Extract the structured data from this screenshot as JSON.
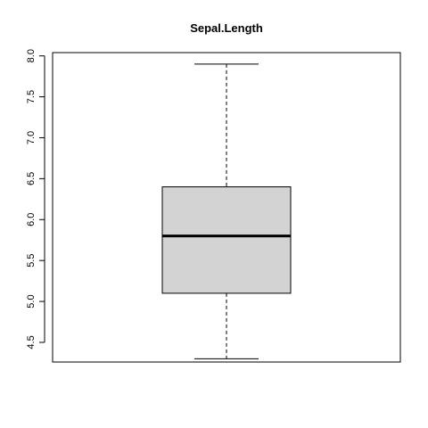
{
  "chart_data": {
    "type": "boxplot",
    "title": "Sepal.Length",
    "xlabel": "",
    "ylabel": "",
    "ylim": [
      4.26,
      8.04
    ],
    "yticks": [
      4.5,
      5.0,
      5.5,
      6.0,
      6.5,
      7.0,
      7.5,
      8.0
    ],
    "ytick_labels": [
      "4.5",
      "5.0",
      "5.5",
      "6.0",
      "6.5",
      "7.0",
      "7.5",
      "8.0"
    ],
    "box": {
      "min": 4.3,
      "q1": 5.1,
      "median": 5.8,
      "q3": 6.4,
      "max": 7.9
    },
    "box_fill": "#d3d3d3",
    "grid": false
  }
}
